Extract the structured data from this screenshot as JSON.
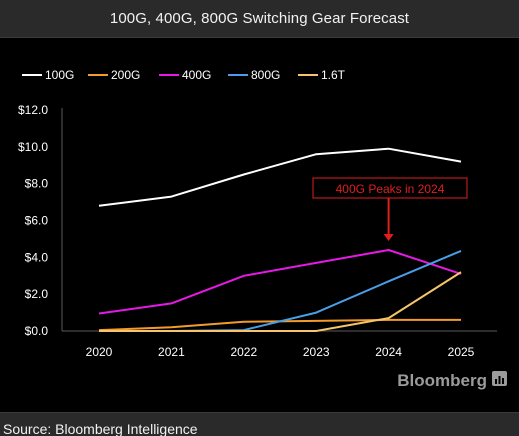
{
  "header": {
    "title": "100G, 400G, 800G Switching Gear Forecast"
  },
  "footer": {
    "source": "Source: Bloomberg Intelligence"
  },
  "brand": {
    "name": "Bloomberg"
  },
  "chart_data": {
    "type": "line",
    "title": "100G, 400G, 800G Switching Gear Forecast",
    "xlabel": "",
    "ylabel": "",
    "x": [
      "2020",
      "2021",
      "2022",
      "2023",
      "2024",
      "2025"
    ],
    "ylim": [
      0,
      12
    ],
    "yticks": [
      "$0.0",
      "$2.0",
      "$4.0",
      "$6.0",
      "$8.0",
      "$10.0",
      "$12.0"
    ],
    "grid": false,
    "legend_position": "top-left",
    "series": [
      {
        "name": "100G",
        "color": "#ffffff",
        "values": [
          6.8,
          7.3,
          8.5,
          9.6,
          9.9,
          9.2
        ]
      },
      {
        "name": "200G",
        "color": "#f39c2c",
        "values": [
          0.05,
          0.2,
          0.5,
          0.55,
          0.6,
          0.6
        ]
      },
      {
        "name": "400G",
        "color": "#e619e6",
        "values": [
          0.95,
          1.5,
          3.0,
          3.7,
          4.4,
          3.1
        ]
      },
      {
        "name": "800G",
        "color": "#4a9ee8",
        "values": [
          0.0,
          0.0,
          0.05,
          1.0,
          2.7,
          4.35
        ]
      },
      {
        "name": "1.6T",
        "color": "#f6c46a",
        "values": [
          0.0,
          0.0,
          0.0,
          0.0,
          0.7,
          3.2
        ]
      }
    ],
    "annotations": [
      {
        "text": "400G Peaks in 2024",
        "x": "2024",
        "y": 4.4,
        "color": "#e01e1e"
      }
    ]
  }
}
